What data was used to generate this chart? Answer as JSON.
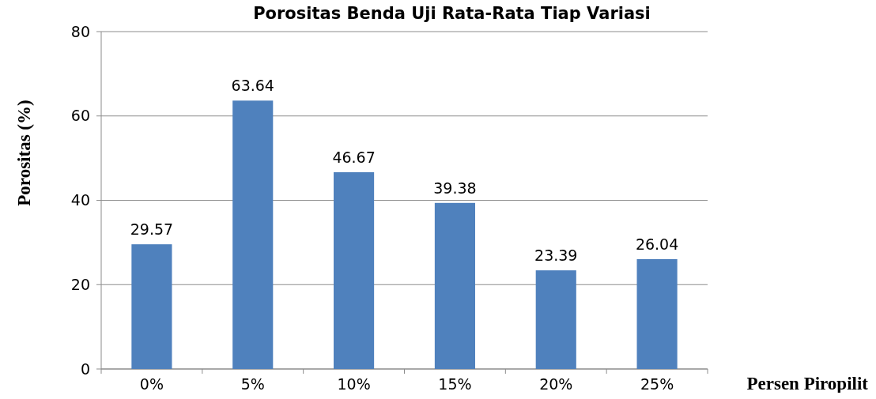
{
  "chart_data": {
    "type": "bar",
    "title": "Porositas Benda Uji Rata-Rata Tiap Variasi",
    "xlabel": "Persen Piropilit",
    "ylabel": "Porositas (%)",
    "categories": [
      "0%",
      "5%",
      "10%",
      "15%",
      "20%",
      "25%"
    ],
    "values": [
      29.57,
      63.64,
      46.67,
      39.38,
      23.39,
      26.04
    ],
    "color": "#4f81bd",
    "ylim": [
      0,
      80
    ],
    "yticks": [
      0,
      20,
      40,
      60,
      80
    ],
    "grid": "y",
    "data_labels": true
  }
}
